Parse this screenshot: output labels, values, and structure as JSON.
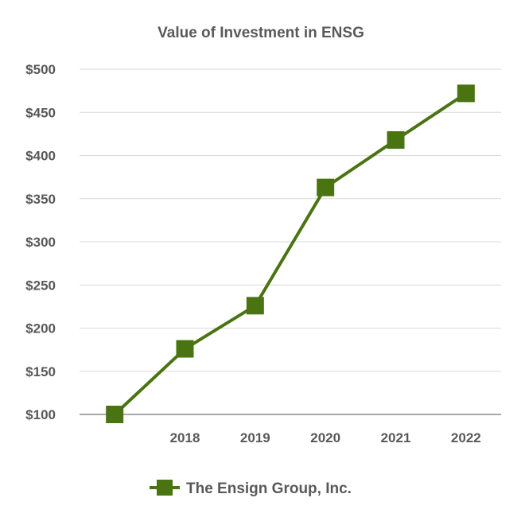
{
  "chart_data": {
    "type": "line",
    "title": "Value of Investment in ENSG",
    "xlabel": "",
    "ylabel": "",
    "categories": [
      "",
      "2018",
      "2019",
      "2020",
      "2021",
      "2022"
    ],
    "series": [
      {
        "name": "The Ensign Group, Inc.",
        "values": [
          100,
          176,
          226,
          363,
          418,
          472
        ],
        "color": "#4a7412"
      }
    ],
    "ylim": [
      100,
      500
    ],
    "yticks": [
      "$100",
      "$150",
      "$200",
      "$250",
      "$300",
      "$350",
      "$400",
      "$450",
      "$500"
    ],
    "ytick_values": [
      100,
      150,
      200,
      250,
      300,
      350,
      400,
      450,
      500
    ],
    "grid": true,
    "legend": "bottom"
  }
}
